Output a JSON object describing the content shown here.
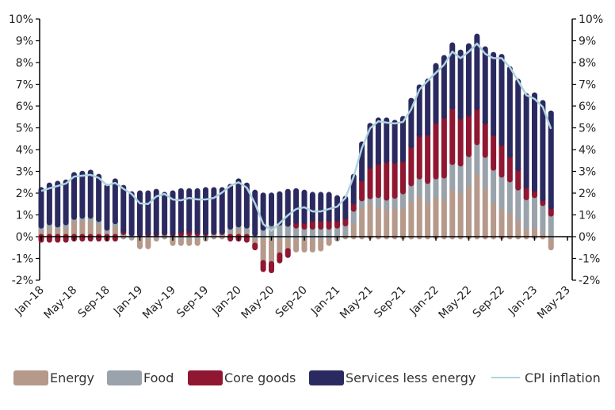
{
  "chart_data": {
    "type": "bar",
    "stacked": true,
    "title": "",
    "xlabel": "",
    "ylabel": "",
    "ylim": [
      -2,
      10
    ],
    "yticks": [
      "-2%",
      "-1%",
      "0%",
      "1%",
      "2%",
      "3%",
      "4%",
      "5%",
      "6%",
      "7%",
      "8%",
      "9%",
      "10%"
    ],
    "xtick_labels": [
      "Jan-18",
      "May-18",
      "Sep-18",
      "Jan-19",
      "May-19",
      "Sep-19",
      "Jan-20",
      "May-20",
      "Sep-20",
      "Jan-21",
      "May-21",
      "Sep-21",
      "Jan-22",
      "May-22",
      "Sep-22",
      "Jan-23",
      "May-23"
    ],
    "x_range": [
      "Jan-18",
      "May-23"
    ],
    "x_start": "Jan-18",
    "x_frequency": "monthly",
    "legend_position": "bottom",
    "grid": false,
    "series": [
      {
        "name": "Energy",
        "color": "#b5998a",
        "values": [
          0.33,
          0.47,
          0.45,
          0.47,
          0.8,
          0.82,
          0.8,
          0.65,
          0.27,
          0.55,
          0.05,
          -0.05,
          -0.45,
          -0.45,
          -0.1,
          0.05,
          -0.3,
          -0.3,
          -0.3,
          -0.3,
          -0.1,
          0.05,
          0.05,
          0.27,
          0.4,
          0.25,
          -0.4,
          -1.2,
          -1.25,
          -0.85,
          -0.65,
          -0.6,
          -0.6,
          -0.6,
          -0.55,
          -0.3,
          -0.1,
          0.15,
          0.7,
          1.42,
          1.64,
          1.42,
          1.35,
          1.37,
          1.37,
          1.7,
          1.93,
          1.67,
          1.9,
          1.8,
          2.25,
          2.1,
          2.44,
          2.95,
          2.3,
          1.64,
          1.35,
          1.16,
          0.84,
          0.43,
          0.48,
          0.26,
          -0.5
        ]
      },
      {
        "name": "Food",
        "color": "#9aa3ab",
        "values": [
          0.17,
          0.18,
          0.1,
          0.18,
          0.1,
          0.13,
          0.15,
          0.15,
          0.13,
          0.15,
          0.15,
          0.15,
          0.1,
          0.12,
          0.12,
          0.12,
          0.12,
          0.12,
          0.15,
          0.15,
          0.15,
          0.15,
          0.15,
          0.18,
          0.15,
          0.25,
          0.15,
          0.4,
          0.6,
          0.63,
          0.58,
          0.5,
          0.45,
          0.45,
          0.45,
          0.45,
          0.5,
          0.45,
          0.57,
          0.33,
          0.21,
          0.48,
          0.43,
          0.5,
          0.7,
          0.74,
          0.83,
          0.88,
          0.86,
          1.0,
          1.17,
          1.25,
          1.34,
          1.38,
          1.45,
          1.52,
          1.49,
          1.46,
          1.41,
          1.37,
          1.42,
          1.27,
          1.05
        ]
      },
      {
        "name": "Core goods",
        "color": "#8f1731",
        "values": [
          -0.15,
          -0.15,
          -0.15,
          -0.15,
          -0.1,
          -0.1,
          -0.1,
          -0.1,
          -0.1,
          -0.1,
          0.1,
          0.0,
          0.05,
          0.05,
          0.05,
          0.03,
          0.05,
          0.15,
          0.15,
          0.1,
          0.05,
          0.03,
          0.05,
          -0.1,
          -0.1,
          -0.15,
          -0.1,
          -0.3,
          -0.3,
          -0.25,
          -0.2,
          0.2,
          0.25,
          0.35,
          0.35,
          0.35,
          0.3,
          0.3,
          0.33,
          0.9,
          1.39,
          1.52,
          1.72,
          1.6,
          1.46,
          1.74,
          1.94,
          2.2,
          2.54,
          2.73,
          2.54,
          2.15,
          1.86,
          1.6,
          1.52,
          1.57,
          1.45,
          1.13,
          0.88,
          0.53,
          0.28,
          0.22,
          0.33
        ]
      },
      {
        "name": "Services less energy",
        "color": "#2b2a60",
        "values": [
          1.65,
          1.71,
          1.89,
          1.85,
          1.94,
          1.95,
          2.0,
          1.96,
          1.9,
          1.85,
          1.95,
          1.81,
          1.85,
          1.83,
          1.9,
          1.73,
          1.83,
          1.83,
          1.8,
          1.85,
          1.95,
          1.92,
          1.9,
          1.85,
          2.0,
          1.86,
          1.88,
          1.5,
          1.3,
          1.33,
          1.49,
          1.4,
          1.33,
          1.13,
          1.13,
          1.13,
          0.98,
          0.85,
          1.16,
          1.6,
          1.86,
          1.93,
          1.85,
          1.77,
          1.89,
          2.07,
          2.17,
          2.38,
          2.55,
          2.69,
          2.84,
          2.97,
          3.12,
          3.27,
          3.35,
          3.63,
          3.98,
          3.96,
          4.0,
          4.14,
          4.32,
          4.4,
          4.29
        ]
      },
      {
        "name": "CPI inflation",
        "type": "line",
        "color": "#aed3df",
        "values": [
          2.1,
          2.22,
          2.33,
          2.44,
          2.76,
          2.8,
          2.84,
          2.7,
          2.36,
          2.47,
          2.2,
          1.96,
          1.53,
          1.5,
          1.85,
          1.96,
          1.71,
          1.67,
          1.78,
          1.71,
          1.71,
          1.78,
          2.03,
          2.33,
          2.5,
          2.25,
          1.53,
          0.58,
          0.27,
          0.62,
          0.98,
          1.27,
          1.35,
          1.16,
          1.16,
          1.27,
          1.38,
          1.78,
          2.76,
          4.07,
          4.98,
          5.3,
          5.24,
          5.2,
          5.27,
          5.85,
          6.76,
          7.16,
          7.53,
          7.9,
          8.5,
          8.2,
          8.5,
          8.87,
          8.4,
          8.2,
          8.2,
          7.78,
          7.16,
          6.5,
          6.33,
          5.96,
          4.95
        ]
      }
    ]
  }
}
